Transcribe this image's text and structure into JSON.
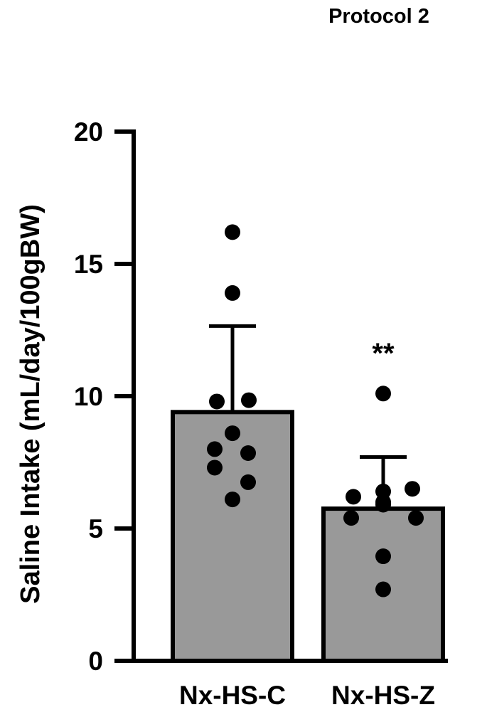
{
  "chart_data": {
    "type": "bar",
    "title": "Protocol 2",
    "xlabel": "",
    "ylabel": "Saline Intake (mL/day/100gBW)",
    "ylim": [
      0,
      20
    ],
    "yticks": [
      0,
      5,
      10,
      15,
      20
    ],
    "categories": [
      "Nx-HS-C",
      "Nx-HS-Z"
    ],
    "values": [
      9.4,
      5.75
    ],
    "error_bars": [
      3.25,
      1.95
    ],
    "bar_color": "#999999",
    "points": [
      [
        16.2,
        13.9,
        9.85,
        9.8,
        8.6,
        8.0,
        7.85,
        7.3,
        6.75,
        6.1
      ],
      [
        10.1,
        6.5,
        6.4,
        6.2,
        6.0,
        5.9,
        5.4,
        5.4,
        3.95,
        2.7
      ]
    ],
    "annotations": [
      {
        "category": "Nx-HS-Z",
        "text": "**"
      }
    ],
    "grid": false,
    "legend": "none"
  }
}
